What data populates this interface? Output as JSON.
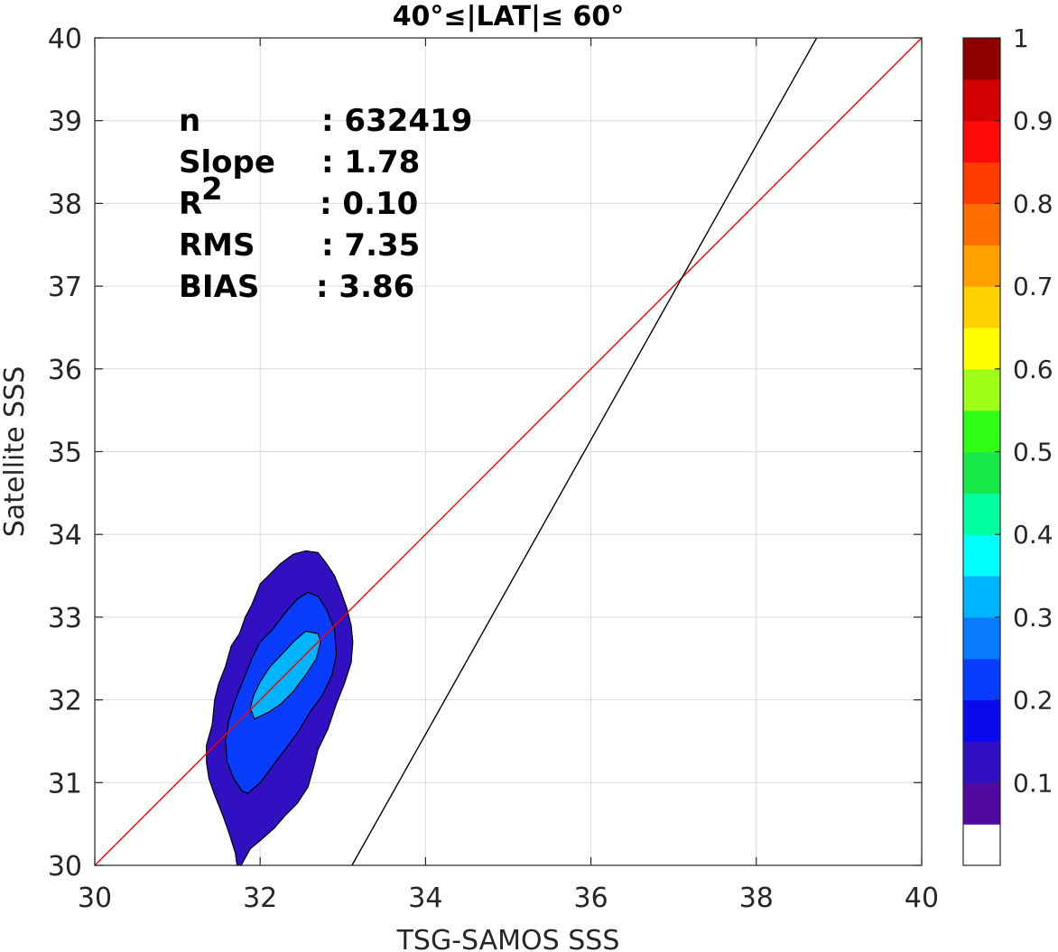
{
  "chart_data": {
    "type": "contour",
    "title": "40°≤|LAT|≤ 60°",
    "xlabel": "TSG-SAMOS SSS",
    "ylabel": "Satellite SSS",
    "xlim": [
      30,
      40
    ],
    "ylim": [
      30,
      40
    ],
    "xticks": [
      30,
      32,
      34,
      36,
      38,
      40
    ],
    "yticks": [
      30,
      31,
      32,
      33,
      34,
      35,
      36,
      37,
      38,
      39,
      40
    ],
    "grid": true,
    "stats": [
      {
        "label": "n",
        "value": ": 632419"
      },
      {
        "label": "Slope",
        "value": ": 1.78"
      },
      {
        "label": "R",
        "superscript": "2",
        "value": ": 0.10"
      },
      {
        "label": "RMS",
        "value": ": 7.35"
      },
      {
        "label": "BIAS",
        "value": ": 3.86"
      }
    ],
    "lines": [
      {
        "name": "1:1 line",
        "color": "#ff0000",
        "x": [
          30,
          40
        ],
        "y": [
          30,
          40
        ]
      },
      {
        "name": "fit line",
        "color": "#000000",
        "x": [
          33.11,
          38.73
        ],
        "y": [
          30,
          40
        ]
      }
    ],
    "contours": [
      {
        "level": 0.05,
        "color": "#3010c0",
        "points": [
          [
            31.77,
            30.0
          ],
          [
            31.88,
            30.2
          ],
          [
            32.0,
            30.3
          ],
          [
            32.17,
            30.45
          ],
          [
            32.3,
            30.6
          ],
          [
            32.45,
            30.75
          ],
          [
            32.58,
            30.95
          ],
          [
            32.65,
            31.2
          ],
          [
            32.7,
            31.4
          ],
          [
            32.82,
            31.65
          ],
          [
            32.92,
            31.95
          ],
          [
            33.02,
            32.2
          ],
          [
            33.1,
            32.45
          ],
          [
            33.12,
            32.7
          ],
          [
            33.1,
            32.9
          ],
          [
            33.05,
            33.1
          ],
          [
            32.98,
            33.3
          ],
          [
            32.9,
            33.5
          ],
          [
            32.8,
            33.65
          ],
          [
            32.7,
            33.78
          ],
          [
            32.55,
            33.8
          ],
          [
            32.4,
            33.76
          ],
          [
            32.25,
            33.65
          ],
          [
            32.1,
            33.5
          ],
          [
            32.0,
            33.4
          ],
          [
            31.9,
            33.15
          ],
          [
            31.82,
            33.0
          ],
          [
            31.75,
            32.8
          ],
          [
            31.65,
            32.65
          ],
          [
            31.58,
            32.4
          ],
          [
            31.5,
            32.2
          ],
          [
            31.45,
            32.0
          ],
          [
            31.42,
            31.7
          ],
          [
            31.35,
            31.45
          ],
          [
            31.35,
            31.25
          ],
          [
            31.38,
            31.05
          ],
          [
            31.45,
            30.85
          ],
          [
            31.55,
            30.6
          ],
          [
            31.62,
            30.4
          ],
          [
            31.7,
            30.15
          ],
          [
            31.72,
            30.0
          ]
        ]
      },
      {
        "level": 0.2,
        "color": "#0a3cff",
        "points": [
          [
            31.85,
            30.87
          ],
          [
            32.0,
            31.0
          ],
          [
            32.15,
            31.2
          ],
          [
            32.3,
            31.4
          ],
          [
            32.45,
            31.6
          ],
          [
            32.6,
            31.85
          ],
          [
            32.75,
            32.05
          ],
          [
            32.87,
            32.3
          ],
          [
            32.92,
            32.55
          ],
          [
            32.9,
            32.85
          ],
          [
            32.8,
            33.1
          ],
          [
            32.7,
            33.25
          ],
          [
            32.58,
            33.3
          ],
          [
            32.45,
            33.22
          ],
          [
            32.3,
            33.05
          ],
          [
            32.15,
            32.85
          ],
          [
            32.0,
            32.7
          ],
          [
            31.9,
            32.5
          ],
          [
            31.8,
            32.25
          ],
          [
            31.7,
            32.0
          ],
          [
            31.62,
            31.75
          ],
          [
            31.58,
            31.5
          ],
          [
            31.6,
            31.25
          ],
          [
            31.68,
            31.05
          ],
          [
            31.78,
            30.9
          ]
        ]
      },
      {
        "level": 0.3,
        "color": "#00b4ff",
        "points": [
          [
            31.93,
            31.77
          ],
          [
            32.1,
            31.85
          ],
          [
            32.25,
            31.95
          ],
          [
            32.4,
            32.1
          ],
          [
            32.55,
            32.3
          ],
          [
            32.68,
            32.5
          ],
          [
            32.73,
            32.7
          ],
          [
            32.7,
            32.8
          ],
          [
            32.55,
            32.83
          ],
          [
            32.42,
            32.72
          ],
          [
            32.28,
            32.57
          ],
          [
            32.12,
            32.4
          ],
          [
            32.0,
            32.22
          ],
          [
            31.92,
            32.05
          ],
          [
            31.88,
            31.9
          ]
        ]
      }
    ],
    "colorbar": {
      "range": [
        0,
        1
      ],
      "labels": [
        "1",
        "0.9",
        "0.8",
        "0.7",
        "0.6",
        "0.5",
        "0.4",
        "0.3",
        "0.2",
        "0.1"
      ],
      "label_values": [
        1,
        0.9,
        0.8,
        0.7,
        0.6,
        0.5,
        0.4,
        0.3,
        0.2,
        0.1
      ],
      "colors": [
        "#ffffff",
        "#500aa0",
        "#3010c0",
        "#0a0aef",
        "#0a3cff",
        "#0a7aff",
        "#00b4ff",
        "#00ffff",
        "#00ffa0",
        "#18e84a",
        "#30ff18",
        "#a0ff18",
        "#ffff00",
        "#ffd200",
        "#ffa000",
        "#ff6e00",
        "#ff3c00",
        "#ff0a0a",
        "#d20000",
        "#8c0000"
      ]
    }
  }
}
